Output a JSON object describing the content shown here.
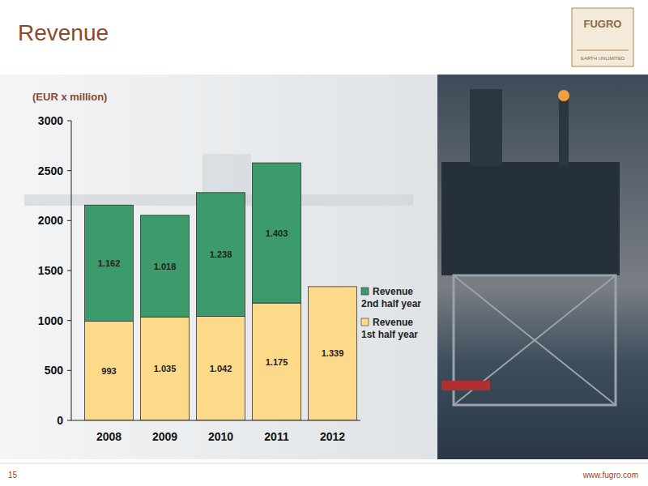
{
  "chart_data": {
    "type": "bar",
    "title": "Revenue",
    "y_label": "(EUR x million)",
    "categories": [
      "2008",
      "2009",
      "2010",
      "2011",
      "2012"
    ],
    "series": [
      {
        "name": "Revenue 1st half year",
        "color": "#fdd98a",
        "values": [
          993,
          1035,
          1042,
          1175,
          1339
        ],
        "value_labels": [
          "993",
          "1.035",
          "1.042",
          "1.175",
          "1.339"
        ]
      },
      {
        "name": "Revenue 2nd half year",
        "color": "#3c9a6b",
        "values": [
          1162,
          1018,
          1238,
          1403,
          null
        ],
        "value_labels": [
          "1.162",
          "1.018",
          "1.238",
          "1.403",
          null
        ]
      }
    ],
    "ylim": [
      0,
      3000
    ],
    "yticks": [
      0,
      500,
      1000,
      1500,
      2000,
      2500,
      3000
    ],
    "stacked": true,
    "data_labels": true,
    "grid": false,
    "legend": "right"
  },
  "page": {
    "page_number": "15",
    "footer": "www.fugro.com",
    "logo": "FUGRO",
    "logo_tagline": "EARTH UNLIMITED"
  }
}
